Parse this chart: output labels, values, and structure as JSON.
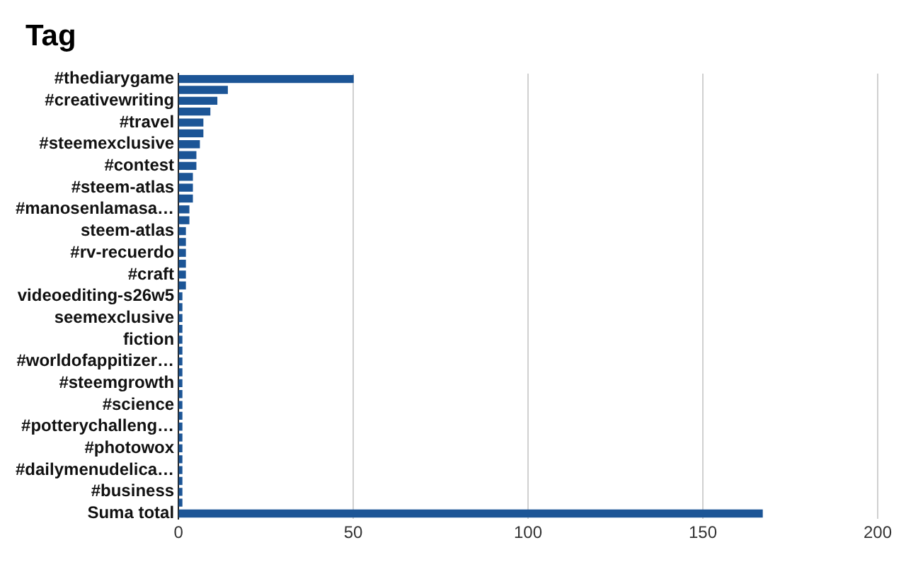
{
  "chart_data": {
    "type": "bar",
    "orientation": "horizontal",
    "title": "Tag",
    "categories": [
      "#thediarygame",
      null,
      "#creativewriting",
      null,
      "#travel",
      null,
      "#steemexclusive",
      null,
      "#contest",
      null,
      "#steem-atlas",
      null,
      "#manosenlamasa…",
      null,
      "steem-atlas",
      null,
      "#rv-recuerdo",
      null,
      "#craft",
      null,
      "videoediting-s26w5",
      null,
      "seemexclusive",
      null,
      "fiction",
      null,
      "#worldofappitizer…",
      null,
      "#steemgrowth",
      null,
      "#science",
      null,
      "#potterychalleng…",
      null,
      "#photowox",
      null,
      "#dailymenudelica…",
      null,
      "#business",
      null,
      "Suma total"
    ],
    "values": [
      50,
      14,
      11,
      9,
      7,
      7,
      6,
      5,
      5,
      4,
      4,
      4,
      3,
      3,
      2,
      2,
      2,
      2,
      2,
      2,
      1,
      1,
      1,
      1,
      1,
      1,
      1,
      1,
      1,
      1,
      1,
      1,
      1,
      1,
      1,
      1,
      1,
      1,
      1,
      1,
      167
    ],
    "color": "#1c5596",
    "xlim": [
      0,
      200
    ],
    "xticks": [
      0,
      50,
      100,
      150,
      200
    ],
    "grid": "x",
    "legend": false
  }
}
